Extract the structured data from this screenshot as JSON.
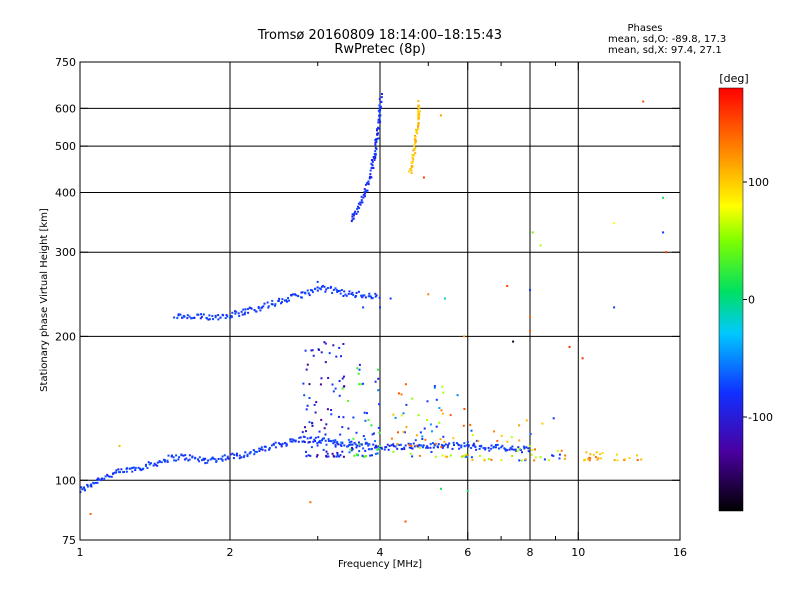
{
  "chart_data": {
    "type": "scatter",
    "title": "Tromsø 20160809 18:14:00–18:15:43",
    "subtitle": "RwPretec (8p)",
    "xlabel": "Frequency [MHz]",
    "ylabel": "Stationary phase Virtual Height [km]",
    "x_scale": "log",
    "y_scale": "log",
    "xlim": [
      1,
      16
    ],
    "ylim": [
      75,
      750
    ],
    "x_ticks": [
      1,
      2,
      4,
      6,
      8,
      10,
      16
    ],
    "x_tick_labels": [
      "1",
      "2",
      "4",
      "6",
      "8",
      "10",
      "16"
    ],
    "x_minor_ticks": [
      3,
      5,
      7,
      9
    ],
    "y_ticks": [
      75,
      100,
      200,
      300,
      400,
      500,
      600,
      750
    ],
    "y_tick_labels": [
      "75",
      "100",
      "200",
      "300",
      "400",
      "500",
      "600",
      "750"
    ],
    "grid": true,
    "stats": {
      "heading": "Phases",
      "line_o": "mean, sd,O: -89.8, 17.3",
      "line_x": "mean, sd,X:  97.4, 27.1"
    },
    "colorbar": {
      "label": "[deg]",
      "range": [
        -180,
        180
      ],
      "ticks": [
        100,
        0,
        -100
      ],
      "tick_labels": [
        "100",
        "0",
        "-100"
      ]
    },
    "traces": [
      {
        "phase": -95,
        "points": [
          [
            1.0,
            95
          ],
          [
            1.05,
            98
          ],
          [
            1.1,
            101
          ],
          [
            1.2,
            104
          ],
          [
            1.3,
            106
          ],
          [
            1.4,
            108
          ],
          [
            1.5,
            111
          ],
          [
            1.6,
            112
          ],
          [
            1.7,
            111
          ],
          [
            1.8,
            110
          ],
          [
            1.9,
            111
          ],
          [
            2.0,
            112
          ],
          [
            2.2,
            114
          ],
          [
            2.4,
            117
          ],
          [
            2.6,
            120
          ],
          [
            2.8,
            122
          ],
          [
            3.0,
            121
          ],
          [
            3.2,
            120
          ],
          [
            3.5,
            119
          ],
          [
            3.8,
            118
          ],
          [
            4.0,
            117
          ],
          [
            4.5,
            118
          ],
          [
            5.0,
            118
          ],
          [
            5.5,
            118
          ],
          [
            6.0,
            118
          ],
          [
            6.5,
            117
          ],
          [
            7.0,
            117
          ],
          [
            7.5,
            116
          ],
          [
            8.0,
            116
          ]
        ]
      },
      {
        "phase": -95,
        "points": [
          [
            1.55,
            220
          ],
          [
            1.65,
            219
          ],
          [
            1.9,
            220
          ],
          [
            2.1,
            224
          ],
          [
            2.3,
            230
          ],
          [
            2.5,
            236
          ],
          [
            2.7,
            242
          ],
          [
            2.9,
            248
          ],
          [
            3.1,
            252
          ],
          [
            3.3,
            248
          ],
          [
            3.5,
            245
          ],
          [
            3.8,
            244
          ],
          [
            4.0,
            242
          ]
        ]
      },
      {
        "phase": -100,
        "points": [
          [
            3.5,
            350
          ],
          [
            3.6,
            370
          ],
          [
            3.7,
            390
          ],
          [
            3.8,
            420
          ],
          [
            3.85,
            450
          ],
          [
            3.9,
            480
          ],
          [
            3.95,
            520
          ],
          [
            3.98,
            560
          ],
          [
            4.0,
            600
          ],
          [
            4.02,
            640
          ]
        ]
      },
      {
        "phase": 105,
        "points": [
          [
            4.6,
            440
          ],
          [
            4.65,
            470
          ],
          [
            4.7,
            500
          ],
          [
            4.75,
            540
          ],
          [
            4.78,
            580
          ],
          [
            4.8,
            620
          ]
        ]
      }
    ],
    "clusters": [
      {
        "x_range": [
          2.8,
          3.4
        ],
        "y_range": [
          112,
          195
        ],
        "count": 90,
        "phases": [
          -125,
          -110,
          -95
        ]
      },
      {
        "x_range": [
          3.3,
          4.0
        ],
        "y_range": [
          112,
          175
        ],
        "count": 60,
        "phases": [
          -110,
          -95,
          -70,
          30
        ]
      },
      {
        "x_range": [
          4.2,
          6.0
        ],
        "y_range": [
          112,
          160
        ],
        "count": 70,
        "phases": [
          -95,
          -60,
          60,
          110,
          140
        ]
      },
      {
        "x_range": [
          6.0,
          9.5
        ],
        "y_range": [
          110,
          135
        ],
        "count": 50,
        "phases": [
          -95,
          60,
          110,
          135
        ]
      },
      {
        "x_range": [
          10.0,
          13.5
        ],
        "y_range": [
          110,
          115
        ],
        "count": 25,
        "phases": [
          100,
          110,
          140
        ]
      }
    ],
    "points": [
      [
        1.05,
        85,
        140
      ],
      [
        1.2,
        118,
        110
      ],
      [
        2.9,
        90,
        140
      ],
      [
        4.5,
        82,
        150
      ],
      [
        5.3,
        96,
        10
      ],
      [
        6.0,
        95,
        10
      ],
      [
        5.9,
        200,
        120
      ],
      [
        5.0,
        245,
        130
      ],
      [
        5.4,
        240,
        -20
      ],
      [
        7.2,
        255,
        155
      ],
      [
        8.0,
        250,
        -95
      ],
      [
        8.0,
        220,
        140
      ],
      [
        8.0,
        205,
        150
      ],
      [
        8.1,
        330,
        45
      ],
      [
        8.4,
        310,
        60
      ],
      [
        7.4,
        195,
        -170
      ],
      [
        9.6,
        190,
        160
      ],
      [
        10.2,
        180,
        160
      ],
      [
        11.8,
        345,
        80
      ],
      [
        14.8,
        390,
        10
      ],
      [
        14.8,
        330,
        -100
      ],
      [
        15.0,
        300,
        160
      ],
      [
        13.5,
        620,
        150
      ],
      [
        11.8,
        230,
        -95
      ],
      [
        5.3,
        580,
        120
      ],
      [
        4.2,
        240,
        -95
      ],
      [
        4.0,
        230,
        -95
      ],
      [
        3.0,
        260,
        -95
      ],
      [
        3.7,
        230,
        -95
      ],
      [
        4.9,
        430,
        160
      ]
    ]
  }
}
